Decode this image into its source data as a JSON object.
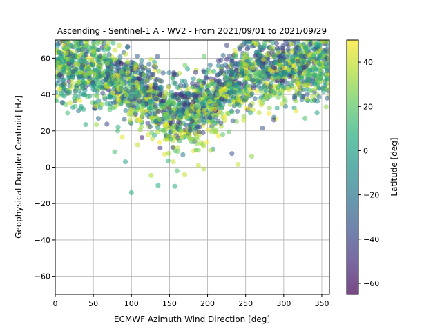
{
  "chart_data": {
    "type": "scatter",
    "title": "Ascending - Sentinel-1 A - WV2 - From 2021/09/01 to 2021/09/29",
    "xlabel": "ECMWF Azimuth Wind Direction [deg]",
    "ylabel": "Geophysical Doppler Centroid [Hz]",
    "xlim": [
      0,
      360
    ],
    "ylim": [
      -70,
      70
    ],
    "xticks": [
      0,
      50,
      100,
      150,
      200,
      250,
      300,
      350
    ],
    "yticks": [
      -60,
      -40,
      -20,
      0,
      20,
      40,
      60
    ],
    "grid": true,
    "marker_alpha": 0.55,
    "colorbar": {
      "label": "Latitude [deg]",
      "range": [
        -65,
        50
      ],
      "ticks": [
        -60,
        -40,
        -20,
        0,
        20,
        40
      ],
      "colormap": "viridis"
    },
    "notable_points": [
      {
        "x": 100,
        "y": -14,
        "lat": 5
      },
      {
        "x": 135,
        "y": -10,
        "lat": 5
      },
      {
        "x": 157,
        "y": -10.5,
        "lat": 5
      },
      {
        "x": 92,
        "y": 3,
        "lat": 0
      },
      {
        "x": 78,
        "y": 8.5,
        "lat": 15
      },
      {
        "x": 148,
        "y": 3.5,
        "lat": 10
      },
      {
        "x": 170,
        "y": -4,
        "lat": 40
      },
      {
        "x": 126,
        "y": -4.5,
        "lat": 35
      },
      {
        "x": 195,
        "y": -1,
        "lat": 35
      },
      {
        "x": 188,
        "y": 1,
        "lat": 40
      },
      {
        "x": 160,
        "y": -2,
        "lat": 15
      },
      {
        "x": 240,
        "y": 1.5,
        "lat": 40
      },
      {
        "x": 258,
        "y": 6,
        "lat": 30
      },
      {
        "x": 316,
        "y": 31,
        "lat": 45
      },
      {
        "x": 40,
        "y": 23.5,
        "lat": 5
      },
      {
        "x": 357,
        "y": 38,
        "lat": -30
      },
      {
        "x": 0,
        "y": 37,
        "lat": 15
      },
      {
        "x": 26,
        "y": 33.5,
        "lat": 15
      },
      {
        "x": 287,
        "y": 26,
        "lat": -40
      },
      {
        "x": 272,
        "y": 21.5,
        "lat": -35
      },
      {
        "x": 232,
        "y": 7.5,
        "lat": -35
      },
      {
        "x": 88,
        "y": 16.5,
        "lat": 45
      },
      {
        "x": 82,
        "y": 20,
        "lat": 15
      },
      {
        "x": 220,
        "y": 18,
        "lat": 20
      }
    ]
  }
}
